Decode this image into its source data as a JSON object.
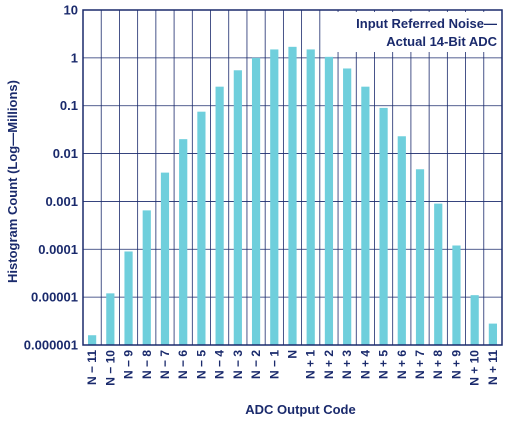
{
  "chart_data": {
    "type": "bar",
    "yscale": "log",
    "ylim": [
      1e-06,
      10
    ],
    "yticks": [
      10,
      1,
      0.1,
      0.01,
      0.001,
      0.0001,
      1e-05,
      1e-06
    ],
    "ytick_labels": [
      "10",
      "1",
      "0.1",
      "0.01",
      "0.001",
      "0.0001",
      "0.00001",
      "0.000001"
    ],
    "xlabel": "ADC Output Code",
    "ylabel": "Histogram Count (Log—Millions)",
    "annotation": [
      "Input Referred Noise—",
      "Actual 14-Bit ADC"
    ],
    "grid": true,
    "categories": [
      "N − 11",
      "N − 10",
      "N − 9",
      "N − 8",
      "N − 7",
      "N − 6",
      "N − 5",
      "N − 4",
      "N − 3",
      "N − 2",
      "N − 1",
      "N",
      "N + 1",
      "N + 2",
      "N + 3",
      "N + 4",
      "N + 5",
      "N + 6",
      "N + 7",
      "N + 8",
      "N + 9",
      "N + 10",
      "N + 11"
    ],
    "values": [
      1.6e-06,
      1.2e-05,
      9e-05,
      0.00065,
      0.004,
      0.02,
      0.075,
      0.25,
      0.55,
      1.0,
      1.5,
      1.7,
      1.5,
      1.05,
      0.6,
      0.25,
      0.09,
      0.023,
      0.0047,
      0.0009,
      0.00012,
      1.1e-05,
      2.8e-06
    ],
    "colors": {
      "bar": "#6fcfdc",
      "axis": "#1a2a6c",
      "grid": "#1a2a6c"
    }
  }
}
